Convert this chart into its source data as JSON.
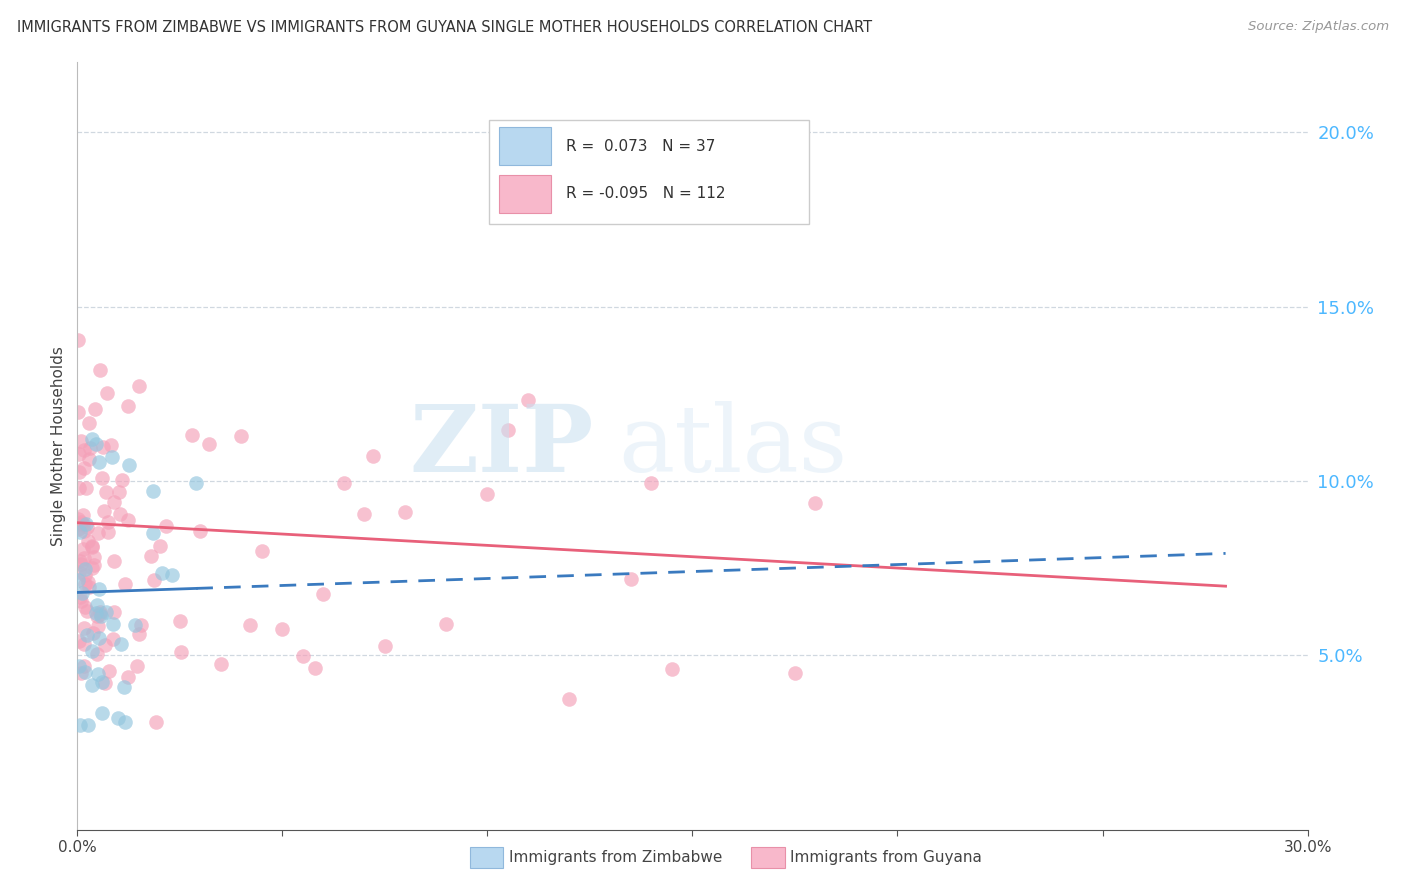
{
  "title": "IMMIGRANTS FROM ZIMBABWE VS IMMIGRANTS FROM GUYANA SINGLE MOTHER HOUSEHOLDS CORRELATION CHART",
  "source": "Source: ZipAtlas.com",
  "ylabel": "Single Mother Households",
  "right_yticks": [
    5.0,
    10.0,
    15.0,
    20.0
  ],
  "xlim": [
    0.0,
    30.0
  ],
  "ylim": [
    0.0,
    22.0
  ],
  "zimbabwe_R": 0.073,
  "zimbabwe_N": 37,
  "guyana_R": -0.095,
  "guyana_N": 112,
  "watermark_zip": "ZIP",
  "watermark_atlas": "atlas",
  "blue_scatter_color": "#92c5de",
  "pink_scatter_color": "#f4a0b8",
  "blue_line_color": "#3a7abf",
  "pink_line_color": "#e8607a",
  "right_axis_color": "#4db8ff",
  "legend_box_blue": "#b8d8f0",
  "legend_box_pink": "#f8b8cb",
  "background_color": "#ffffff",
  "grid_color": "#d0d8e0",
  "title_color": "#333333",
  "source_color": "#999999",
  "scatter_alpha": 0.65,
  "scatter_size": 110,
  "zim_line_intercept": 6.8,
  "zim_line_slope": 0.04,
  "guy_line_intercept": 8.8,
  "guy_line_slope": -0.065,
  "zim_data_max_x": 2.8,
  "guy_data_max_x": 18.5
}
